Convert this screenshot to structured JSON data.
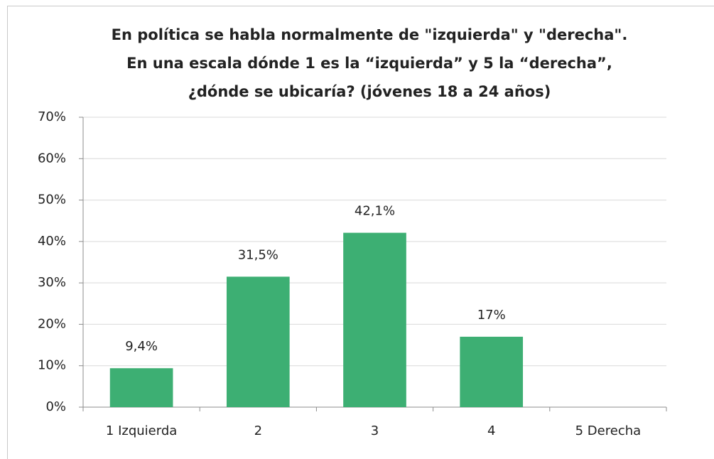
{
  "chart_data": {
    "type": "bar",
    "title": [
      "En política se habla normalmente de \"izquierda\" y \"derecha\".",
      "En una escala dónde 1 es la “izquierda” y 5 la “derecha”,",
      "¿dónde se ubicaría? (jóvenes 18 a 24 años)"
    ],
    "categories": [
      "1 Izquierda",
      "2",
      "3",
      "4",
      "5 Derecha"
    ],
    "values": [
      9.4,
      31.5,
      42.1,
      17,
      null
    ],
    "value_labels": [
      "9,4%",
      "31,5%",
      "42,1%",
      "17%",
      null
    ],
    "color": "#3daf73",
    "ylim": [
      0,
      70
    ],
    "yticks": [
      {
        "value": 0,
        "label": "0%"
      },
      {
        "value": 10,
        "label": "10%"
      },
      {
        "value": 20,
        "label": "20%"
      },
      {
        "value": 30,
        "label": "30%"
      },
      {
        "value": 40,
        "label": "40%"
      },
      {
        "value": 50,
        "label": "50%"
      },
      {
        "value": 60,
        "label": "60%"
      },
      {
        "value": 70,
        "label": "70%"
      }
    ],
    "grid": true
  }
}
